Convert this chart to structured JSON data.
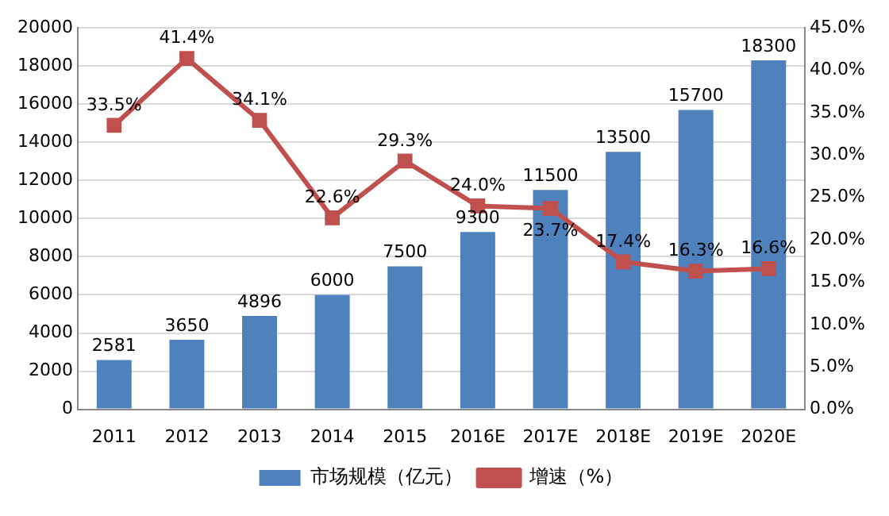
{
  "chart_data": {
    "type": "bar",
    "categories": [
      "2011",
      "2012",
      "2013",
      "2014",
      "2015",
      "2016E",
      "2017E",
      "2018E",
      "2019E",
      "2020E"
    ],
    "series": [
      {
        "name": "市场规模（亿元）",
        "type": "bar",
        "color": "#4f81bd",
        "values": [
          2581,
          3650,
          4896,
          6000,
          7500,
          9300,
          11500,
          13500,
          15700,
          18300
        ],
        "value_labels": [
          "2581",
          "3650",
          "4896",
          "6000",
          "7500",
          "9300",
          "11500",
          "13500",
          "15700",
          "18300"
        ]
      },
      {
        "name": "增速（%）",
        "type": "line",
        "axis": "y2",
        "color": "#c0504d",
        "marker": "square",
        "values": [
          33.5,
          41.4,
          34.1,
          22.6,
          29.3,
          24.0,
          23.7,
          17.4,
          16.3,
          16.6
        ],
        "value_labels": [
          "33.5%",
          "41.4%",
          "34.1%",
          "22.6%",
          "29.3%",
          "24.0%",
          "23.7%",
          "17.4%",
          "16.3%",
          "16.6%"
        ]
      }
    ],
    "ylim": [
      0,
      20000
    ],
    "yticks": [
      0,
      2000,
      4000,
      6000,
      8000,
      10000,
      12000,
      14000,
      16000,
      18000,
      20000
    ],
    "y2lim": [
      0,
      45
    ],
    "y2ticks": [
      {
        "value": 0,
        "label": "0.0%"
      },
      {
        "value": 5,
        "label": "5.0%"
      },
      {
        "value": 10,
        "label": "10.0%"
      },
      {
        "value": 15,
        "label": "15.0%"
      },
      {
        "value": 20,
        "label": "20.0%"
      },
      {
        "value": 25,
        "label": "25.0%"
      },
      {
        "value": 30,
        "label": "30.0%"
      },
      {
        "value": 35,
        "label": "35.0%"
      },
      {
        "value": 40,
        "label": "40.0%"
      },
      {
        "value": 45,
        "label": "45.0%"
      }
    ],
    "grid": "y",
    "legend": "bottom"
  }
}
